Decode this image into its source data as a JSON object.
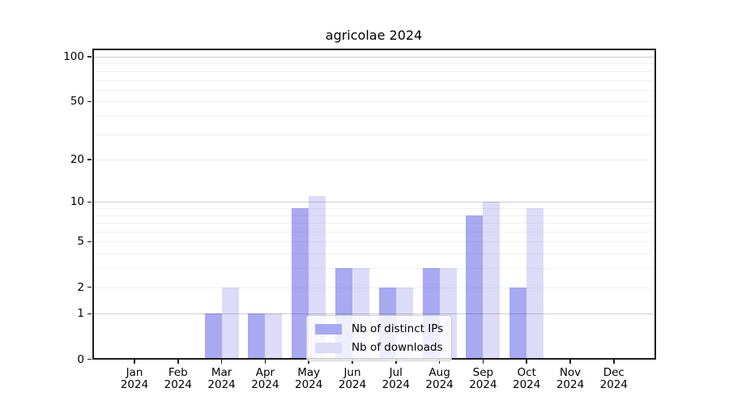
{
  "page": {
    "background": "#ffffff"
  },
  "chart_data": {
    "type": "bar",
    "title": "agricolae 2024",
    "year": "2024",
    "months": [
      "Jan",
      "Feb",
      "Mar",
      "Apr",
      "May",
      "Jun",
      "Jul",
      "Aug",
      "Sep",
      "Oct",
      "Nov",
      "Dec"
    ],
    "categories": [
      "Jan 2024",
      "Feb 2024",
      "Mar 2024",
      "Apr 2024",
      "May 2024",
      "Jun 2024",
      "Jul 2024",
      "Aug 2024",
      "Sep 2024",
      "Oct 2024",
      "Nov 2024",
      "Dec 2024"
    ],
    "series": [
      {
        "name": "Nb of distinct IPs",
        "color": "#a9a9f2",
        "values": [
          0,
          0,
          1,
          1,
          9,
          3,
          2,
          3,
          8,
          2,
          0,
          0
        ]
      },
      {
        "name": "Nb of downloads",
        "color": "#dcdcf8",
        "values": [
          0,
          0,
          2,
          1,
          11,
          3,
          2,
          3,
          10,
          9,
          0,
          0
        ]
      }
    ],
    "xlabel": "",
    "ylabel": "",
    "y_scale": "log1p",
    "yticks": [
      0,
      1,
      2,
      5,
      10,
      20,
      50,
      100
    ],
    "ylim": [
      0,
      100
    ],
    "grid": true,
    "gridlines": {
      "major": [
        1,
        10,
        100
      ],
      "minor": [
        2,
        3,
        4,
        5,
        6,
        7,
        8,
        9,
        20,
        30,
        40,
        50,
        60,
        70,
        80,
        90
      ]
    },
    "legend": {
      "position": "lower-center-inside",
      "items": [
        "Nb of distinct IPs",
        "Nb of downloads"
      ]
    }
  },
  "colors": {
    "bar_ips": "#a9a9f2",
    "bar_downloads": "#dcdcf8",
    "spine": "#1c1c1c",
    "grid_major": "rgba(0,0,0,0.19)",
    "grid_minor": "rgba(0,0,0,0.055)",
    "legend_border": "#cccccc",
    "legend_bg": "rgba(255,255,255,0.8)",
    "text": "#000000"
  }
}
